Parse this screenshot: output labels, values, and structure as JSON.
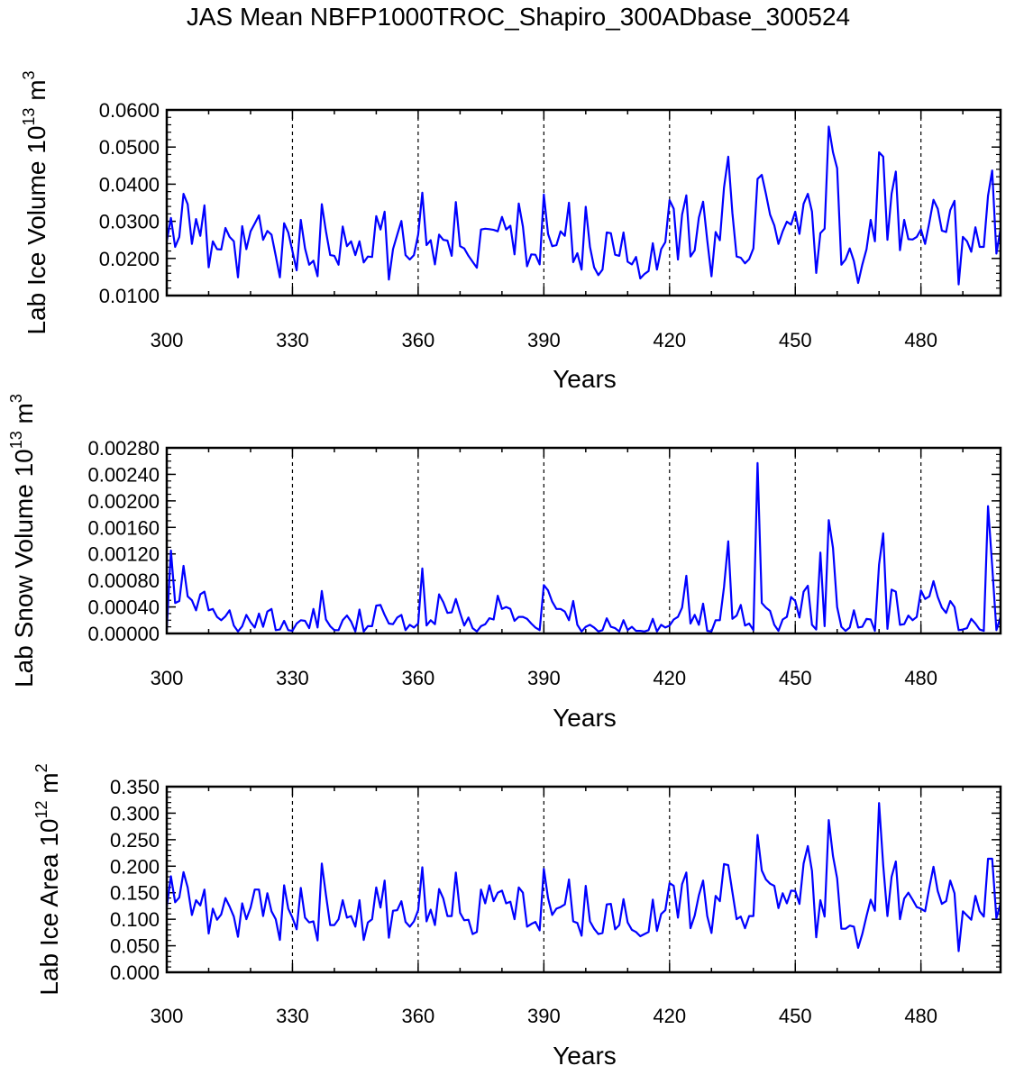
{
  "title": "JAS Mean NBFP1000TROC_Shapiro_300ADbase_300524",
  "chart_data": [
    {
      "type": "line",
      "name": "ice-volume",
      "xlabel": "Years",
      "ylabel": {
        "text": "Lab Ice Volume 10",
        "exp1": "13",
        "unit": " m",
        "exp2": "3"
      },
      "xlim": [
        300,
        499
      ],
      "ylim": [
        0.01,
        0.06
      ],
      "x_ticks": [
        "300",
        "330",
        "360",
        "390",
        "420",
        "450",
        "480"
      ],
      "y_ticks": [
        "0.0100",
        "0.0200",
        "0.0300",
        "0.0400",
        "0.0500",
        "0.0600"
      ],
      "grid": "dashed vertical lines at x ticks",
      "color": "#0000ff",
      "x_start": 300,
      "values": [
        0.0246,
        0.0309,
        0.0231,
        0.0258,
        0.0374,
        0.0346,
        0.0239,
        0.0306,
        0.0261,
        0.0343,
        0.0176,
        0.0246,
        0.0225,
        0.0224,
        0.0282,
        0.0258,
        0.0246,
        0.0149,
        0.0287,
        0.0225,
        0.0273,
        0.0294,
        0.0316,
        0.025,
        0.0274,
        0.0264,
        0.0207,
        0.0149,
        0.0295,
        0.027,
        0.022,
        0.0168,
        0.0304,
        0.0227,
        0.0183,
        0.0194,
        0.0152,
        0.0346,
        0.0273,
        0.0209,
        0.0207,
        0.0183,
        0.0286,
        0.0233,
        0.0246,
        0.0209,
        0.0246,
        0.0189,
        0.0205,
        0.0204,
        0.0314,
        0.0278,
        0.0326,
        0.0143,
        0.0225,
        0.0264,
        0.0301,
        0.0209,
        0.0197,
        0.0209,
        0.0264,
        0.0377,
        0.0236,
        0.0249,
        0.0184,
        0.0264,
        0.025,
        0.0248,
        0.0207,
        0.0352,
        0.0233,
        0.0227,
        0.0207,
        0.0191,
        0.0175,
        0.0278,
        0.028,
        0.0279,
        0.0277,
        0.0273,
        0.0312,
        0.0278,
        0.0288,
        0.0211,
        0.0348,
        0.0286,
        0.0179,
        0.0211,
        0.021,
        0.0184,
        0.0372,
        0.0266,
        0.0233,
        0.0236,
        0.0273,
        0.0261,
        0.035,
        0.019,
        0.0214,
        0.017,
        0.0339,
        0.0231,
        0.0176,
        0.0155,
        0.017,
        0.027,
        0.0268,
        0.021,
        0.0207,
        0.027,
        0.0191,
        0.0184,
        0.0204,
        0.0146,
        0.0158,
        0.0166,
        0.0241,
        0.017,
        0.0225,
        0.0244,
        0.0357,
        0.0334,
        0.0197,
        0.0318,
        0.037,
        0.0205,
        0.0222,
        0.031,
        0.0353,
        0.0249,
        0.0152,
        0.0271,
        0.0249,
        0.0391,
        0.0474,
        0.0322,
        0.0205,
        0.0202,
        0.0187,
        0.0198,
        0.0227,
        0.0414,
        0.0425,
        0.0374,
        0.0318,
        0.0289,
        0.0239,
        0.0273,
        0.0299,
        0.0291,
        0.0326,
        0.0266,
        0.0347,
        0.0374,
        0.0326,
        0.0161,
        0.0268,
        0.028,
        0.0555,
        0.0486,
        0.0443,
        0.0183,
        0.0197,
        0.0227,
        0.0193,
        0.0134,
        0.0183,
        0.0225,
        0.0304,
        0.0246,
        0.0486,
        0.0474,
        0.025,
        0.0374,
        0.0434,
        0.0222,
        0.0304,
        0.0252,
        0.0251,
        0.0258,
        0.0278,
        0.0239,
        0.0297,
        0.0358,
        0.0334,
        0.0275,
        0.0271,
        0.033,
        0.0355,
        0.013,
        0.0258,
        0.0246,
        0.0218,
        0.0284,
        0.0231,
        0.0231,
        0.0369,
        0.0437,
        0.0213,
        0.028
      ]
    },
    {
      "type": "line",
      "name": "snow-volume",
      "xlabel": "Years",
      "ylabel": {
        "text": "Lab Snow Volume 10",
        "exp1": "13",
        "unit": " m",
        "exp2": "3"
      },
      "xlim": [
        300,
        499
      ],
      "ylim": [
        0.0,
        0.0028
      ],
      "x_ticks": [
        "300",
        "330",
        "360",
        "390",
        "420",
        "450",
        "480"
      ],
      "y_ticks": [
        "0.00000",
        "0.00040",
        "0.00080",
        "0.00120",
        "0.00160",
        "0.00200",
        "0.00240",
        "0.00280"
      ],
      "grid": "dashed vertical lines at x ticks",
      "color": "#0000ff",
      "x_start": 300,
      "values": [
        6e-05,
        0.00125,
        0.00046,
        0.00049,
        0.00102,
        0.00056,
        0.0005,
        0.00035,
        0.00059,
        0.00063,
        0.00035,
        0.00037,
        0.00025,
        0.0002,
        0.00026,
        0.00035,
        0.00012,
        3e-05,
        0.00011,
        0.00028,
        0.00017,
        9e-05,
        0.0003,
        0.0001,
        0.00033,
        0.00037,
        5e-05,
        6e-05,
        0.00019,
        5e-05,
        4e-05,
        0.00015,
        0.0002,
        0.00019,
        8e-05,
        0.00037,
        9e-05,
        0.00064,
        0.00021,
        0.00011,
        5e-05,
        5e-05,
        0.0002,
        0.00027,
        0.00018,
        3e-05,
        0.00036,
        3e-05,
        0.00011,
        0.00011,
        0.00042,
        0.00043,
        0.00028,
        0.00015,
        0.00014,
        0.00024,
        0.00028,
        5e-05,
        0.00013,
        9e-05,
        0.00015,
        0.00098,
        0.00012,
        0.0002,
        0.00014,
        0.00059,
        0.00047,
        0.00031,
        0.00032,
        0.00052,
        0.00031,
        0.00012,
        0.00024,
        8e-05,
        3e-05,
        0.00011,
        0.00014,
        0.00023,
        0.00021,
        0.00057,
        0.00037,
        0.0004,
        0.00037,
        0.00019,
        0.00025,
        0.00025,
        0.00022,
        0.00015,
        9e-05,
        5e-05,
        0.00073,
        0.00065,
        0.00048,
        0.00037,
        0.00037,
        0.00033,
        0.0002,
        0.00049,
        0.00013,
        3e-05,
        0.0001,
        0.00013,
        9e-05,
        3e-05,
        5e-05,
        0.00023,
        0.0001,
        8e-05,
        3e-05,
        0.0002,
        5e-05,
        0.0001,
        4e-05,
        4e-05,
        3e-05,
        5e-05,
        0.00022,
        3e-05,
        0.00013,
        9e-05,
        0.00012,
        0.00021,
        0.00025,
        0.00039,
        0.00087,
        0.00015,
        0.00028,
        0.00013,
        0.00045,
        4e-05,
        3e-05,
        0.0002,
        0.0002,
        0.0007,
        0.00139,
        0.00022,
        0.00027,
        0.00043,
        0.00012,
        0.00015,
        5e-05,
        0.00257,
        0.00046,
        0.00039,
        0.00034,
        0.00013,
        4e-05,
        0.00021,
        0.00025,
        0.00055,
        0.00049,
        0.00024,
        0.00063,
        0.00072,
        0.00013,
        6e-05,
        0.00122,
        0.00011,
        0.00171,
        0.00129,
        0.0004,
        0.0001,
        4e-05,
        9e-05,
        0.00035,
        9e-05,
        0.0001,
        0.00022,
        0.00021,
        4e-05,
        0.00104,
        0.00151,
        7e-05,
        0.00066,
        0.00063,
        0.00013,
        0.00014,
        0.00027,
        0.0002,
        0.00025,
        0.00065,
        0.00052,
        0.00056,
        0.00079,
        0.00055,
        0.00039,
        0.00031,
        0.00049,
        0.0004,
        5e-05,
        6e-05,
        8e-05,
        0.00022,
        0.00015,
        6e-05,
        4e-05,
        0.00192,
        0.00102,
        5e-05,
        0.00025
      ]
    },
    {
      "type": "line",
      "name": "ice-area",
      "xlabel": "Years",
      "ylabel": {
        "text": "Lab Ice Area 10",
        "exp1": "12",
        "unit": " m",
        "exp2": "2"
      },
      "xlim": [
        300,
        499
      ],
      "ylim": [
        0.0,
        0.35
      ],
      "x_ticks": [
        "300",
        "330",
        "360",
        "390",
        "420",
        "450",
        "480"
      ],
      "y_ticks": [
        "0.000",
        "0.050",
        "0.100",
        "0.150",
        "0.200",
        "0.250",
        "0.300",
        "0.350"
      ],
      "grid": "dashed vertical lines at x ticks",
      "color": "#0000ff",
      "x_start": 300,
      "values": [
        0.123,
        0.181,
        0.132,
        0.141,
        0.189,
        0.16,
        0.108,
        0.136,
        0.126,
        0.156,
        0.073,
        0.12,
        0.099,
        0.109,
        0.14,
        0.124,
        0.105,
        0.067,
        0.13,
        0.1,
        0.122,
        0.156,
        0.156,
        0.106,
        0.149,
        0.115,
        0.1,
        0.061,
        0.164,
        0.12,
        0.103,
        0.081,
        0.159,
        0.103,
        0.094,
        0.096,
        0.06,
        0.205,
        0.146,
        0.089,
        0.089,
        0.1,
        0.136,
        0.103,
        0.106,
        0.086,
        0.136,
        0.061,
        0.094,
        0.1,
        0.16,
        0.122,
        0.173,
        0.065,
        0.116,
        0.117,
        0.134,
        0.095,
        0.086,
        0.096,
        0.117,
        0.198,
        0.096,
        0.118,
        0.089,
        0.157,
        0.139,
        0.106,
        0.106,
        0.188,
        0.112,
        0.098,
        0.099,
        0.072,
        0.076,
        0.156,
        0.13,
        0.164,
        0.134,
        0.15,
        0.154,
        0.13,
        0.133,
        0.1,
        0.16,
        0.15,
        0.086,
        0.091,
        0.095,
        0.079,
        0.195,
        0.14,
        0.108,
        0.12,
        0.123,
        0.128,
        0.175,
        0.096,
        0.093,
        0.069,
        0.163,
        0.096,
        0.082,
        0.072,
        0.074,
        0.128,
        0.129,
        0.081,
        0.089,
        0.138,
        0.094,
        0.08,
        0.076,
        0.068,
        0.072,
        0.076,
        0.137,
        0.078,
        0.11,
        0.117,
        0.168,
        0.163,
        0.103,
        0.166,
        0.188,
        0.083,
        0.107,
        0.145,
        0.173,
        0.106,
        0.074,
        0.144,
        0.134,
        0.204,
        0.202,
        0.151,
        0.1,
        0.105,
        0.083,
        0.106,
        0.106,
        0.259,
        0.192,
        0.175,
        0.167,
        0.163,
        0.121,
        0.149,
        0.13,
        0.154,
        0.153,
        0.129,
        0.205,
        0.238,
        0.191,
        0.066,
        0.136,
        0.105,
        0.287,
        0.219,
        0.177,
        0.082,
        0.082,
        0.088,
        0.086,
        0.046,
        0.072,
        0.106,
        0.137,
        0.116,
        0.319,
        0.202,
        0.106,
        0.18,
        0.209,
        0.1,
        0.139,
        0.15,
        0.137,
        0.123,
        0.12,
        0.115,
        0.16,
        0.199,
        0.153,
        0.129,
        0.134,
        0.173,
        0.149,
        0.04,
        0.115,
        0.107,
        0.099,
        0.144,
        0.115,
        0.105,
        0.214,
        0.214,
        0.102,
        0.13
      ]
    }
  ]
}
